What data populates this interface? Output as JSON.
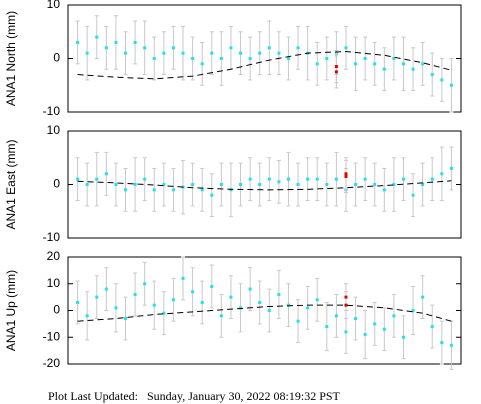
{
  "chart_data": [
    {
      "type": "scatter",
      "ylabel": "ANA1 North (mm)",
      "ylim": [
        -10,
        10
      ],
      "yticks": [
        -10,
        0,
        10
      ],
      "xlim": [
        -1,
        40
      ],
      "series": [
        {
          "color": "#22e0f0",
          "x": [
            0,
            1,
            2,
            3,
            4,
            5,
            6,
            7,
            8,
            9,
            10,
            11,
            12,
            13,
            14,
            15,
            16,
            17,
            18,
            19,
            20,
            21,
            22,
            23,
            24,
            25,
            26,
            27,
            28,
            29,
            30,
            31,
            32,
            33,
            34,
            35,
            36,
            37,
            38,
            39
          ],
          "values": [
            3,
            1,
            4,
            2,
            3,
            1,
            3,
            2,
            0,
            1,
            2,
            1,
            0,
            -1,
            1,
            0,
            2,
            1,
            0,
            1,
            2,
            1,
            0,
            2,
            1,
            -1,
            0,
            1,
            2,
            -1,
            0,
            -1,
            -2,
            0,
            -1,
            -2,
            -1,
            -3,
            -4,
            -5
          ],
          "errors": [
            4,
            5,
            4,
            4,
            5,
            4,
            4,
            5,
            4,
            4,
            4,
            5,
            4,
            4,
            4,
            5,
            4,
            4,
            4,
            4,
            5,
            4,
            4,
            4,
            5,
            4,
            4,
            4,
            4,
            5,
            4,
            4,
            4,
            4,
            5,
            4,
            4,
            4,
            4,
            5
          ]
        },
        {
          "color": "#e00000",
          "x": [
            27,
            27
          ],
          "values": [
            -1.5,
            -2.5
          ],
          "errors": [
            3,
            3
          ]
        },
        {
          "color": "#000000",
          "line": "dashed",
          "x": [
            0,
            4,
            8,
            12,
            16,
            20,
            24,
            28,
            32,
            36,
            39
          ],
          "values": [
            -3,
            -3.5,
            -3.8,
            -3.3,
            -2,
            -0.3,
            1,
            1.3,
            0.6,
            -0.8,
            -2.2
          ]
        }
      ]
    },
    {
      "type": "scatter",
      "ylabel": "ANA1 East (mm)",
      "ylim": [
        -10,
        10
      ],
      "yticks": [
        -10,
        0,
        10
      ],
      "xlim": [
        -1,
        40
      ],
      "series": [
        {
          "color": "#22e0f0",
          "x": [
            0,
            1,
            2,
            3,
            4,
            5,
            6,
            7,
            8,
            9,
            10,
            11,
            12,
            13,
            14,
            15,
            16,
            17,
            18,
            19,
            20,
            21,
            22,
            23,
            24,
            25,
            26,
            27,
            28,
            29,
            30,
            31,
            32,
            33,
            34,
            35,
            36,
            37,
            38,
            39
          ],
          "values": [
            1,
            0,
            1,
            2,
            0,
            -1,
            0,
            1,
            -1,
            0,
            -1,
            -0.5,
            0,
            -1,
            -2,
            0,
            -1,
            0,
            1,
            0,
            1,
            0.5,
            1,
            0,
            1,
            1,
            0,
            1,
            -1,
            0,
            1,
            0,
            -1,
            0,
            1,
            -2,
            0,
            1,
            2,
            3
          ],
          "errors": [
            4,
            4,
            5,
            4,
            4,
            4,
            5,
            4,
            4,
            4,
            4,
            5,
            4,
            4,
            4,
            4,
            5,
            4,
            4,
            4,
            4,
            4,
            5,
            4,
            4,
            4,
            4,
            5,
            4,
            4,
            4,
            4,
            4,
            5,
            4,
            4,
            4,
            4,
            5,
            4
          ]
        },
        {
          "color": "#e00000",
          "x": [
            28,
            28
          ],
          "values": [
            1.5,
            2
          ],
          "errors": [
            3,
            3
          ]
        },
        {
          "color": "#000000",
          "line": "dashed",
          "x": [
            0,
            4,
            8,
            12,
            16,
            20,
            24,
            28,
            32,
            36,
            39
          ],
          "values": [
            0.6,
            0.3,
            -0.1,
            -0.6,
            -0.9,
            -1,
            -0.9,
            -0.6,
            -0.2,
            0.3,
            0.7
          ]
        }
      ]
    },
    {
      "type": "scatter",
      "ylabel": "ANA1 Up (mm)",
      "ylim": [
        -20,
        20
      ],
      "yticks": [
        -20,
        -10,
        0,
        10,
        20
      ],
      "xlim": [
        -1,
        40
      ],
      "series": [
        {
          "color": "#22e0f0",
          "x": [
            0,
            1,
            2,
            3,
            4,
            5,
            6,
            7,
            8,
            9,
            10,
            11,
            12,
            13,
            14,
            15,
            16,
            17,
            18,
            19,
            20,
            21,
            22,
            23,
            24,
            25,
            26,
            27,
            28,
            29,
            30,
            31,
            32,
            33,
            34,
            35,
            36,
            37,
            38,
            39
          ],
          "values": [
            3,
            -2,
            5,
            8,
            1,
            -3,
            6,
            10,
            2,
            -1,
            4,
            12,
            7,
            3,
            9,
            -2,
            5,
            1,
            8,
            3,
            0,
            6,
            2,
            -4,
            1,
            4,
            -6,
            -2,
            -8,
            -3,
            -9,
            -5,
            -7,
            -2,
            -10,
            0,
            5,
            -6,
            -12,
            -13
          ],
          "errors": [
            8,
            9,
            8,
            8,
            9,
            8,
            8,
            8,
            9,
            8,
            8,
            8,
            9,
            8,
            8,
            8,
            8,
            9,
            8,
            8,
            8,
            9,
            8,
            8,
            8,
            8,
            9,
            8,
            8,
            8,
            9,
            8,
            8,
            8,
            8,
            9,
            8,
            8,
            8,
            9
          ]
        },
        {
          "color": "#e00000",
          "x": [
            28,
            28
          ],
          "values": [
            5,
            2
          ],
          "errors": [
            5,
            5
          ]
        },
        {
          "color": "#000000",
          "line": "dashed",
          "x": [
            0,
            4,
            8,
            12,
            16,
            20,
            24,
            28,
            32,
            36,
            39
          ],
          "values": [
            -4,
            -3,
            -1.5,
            -0.5,
            0.5,
            1.5,
            2,
            2,
            1,
            -1,
            -4
          ]
        }
      ]
    }
  ],
  "footer": "Plot Last Updated:   Sunday, January 30, 2022 08:19:32 PST"
}
